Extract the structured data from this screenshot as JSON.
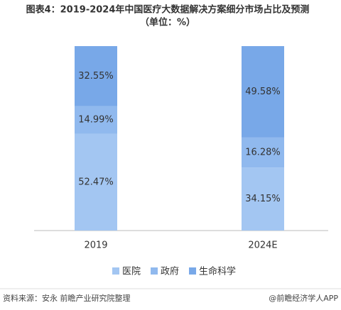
{
  "chart_data": {
    "type": "stacked_bar",
    "title": "图表4：2019-2024年中国医疗大数据解决方案细分市场占比及预测",
    "subtitle": "（单位：%）",
    "categories": [
      "2019",
      "2024E"
    ],
    "series": [
      {
        "name": "医院",
        "color": "#a3c6f2",
        "values": [
          52.47,
          34.15
        ],
        "value_labels": [
          "52.47%",
          "34.15%"
        ]
      },
      {
        "name": "政府",
        "color": "#90b9ee",
        "values": [
          14.99,
          16.28
        ],
        "value_labels": [
          "14.99%",
          "16.28%"
        ]
      },
      {
        "name": "生命科学",
        "color": "#78a8e8",
        "values": [
          32.55,
          49.58
        ],
        "value_labels": [
          "32.55%",
          "49.58%"
        ]
      }
    ],
    "legend": "bottom",
    "source": "资料来源：安永 前瞻产业研究院整理",
    "credit": "@前瞻经济学人APP"
  }
}
